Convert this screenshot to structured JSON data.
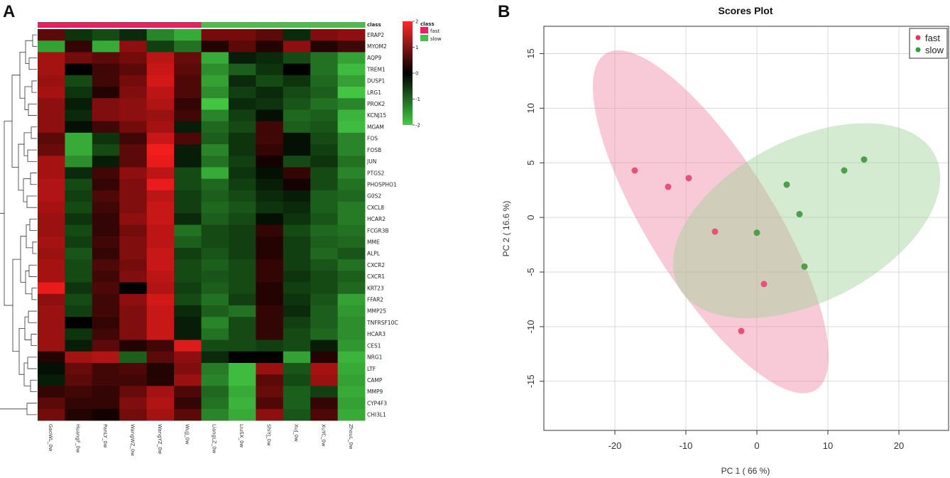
{
  "panels": {
    "a_label": "A",
    "b_label": "B"
  },
  "colors": {
    "fast": "#e8335e",
    "slow": "#2e9e3e",
    "fast_bar": "#e0245e",
    "slow_bar": "#4dbb4d",
    "fast_ellipse": "#f08aa8",
    "slow_ellipse": "#9fd19a",
    "scatter_fast": "#e8527a",
    "scatter_slow": "#4e9e4e"
  },
  "chart_data": [
    {
      "type": "heatmap",
      "class_label": "class",
      "legend": {
        "title": "class",
        "entries": [
          "fast",
          "slow"
        ],
        "scale_ticks": [
          "2",
          "1",
          "0",
          "-1",
          "-2"
        ],
        "scale_range": [
          -2,
          2
        ]
      },
      "samples": [
        "GaoWL_0w",
        "HuangF_0w",
        "PanLY_0w",
        "WangWZ_0w",
        "WangYZ_0w",
        "WuJJ_0w",
        "LiangLZ_0w",
        "LiuSX_0w",
        "ShiYJ_0w",
        "XuJ_0w",
        "XuYC_0w",
        "ZhouL_0w"
      ],
      "sample_class": [
        "fast",
        "fast",
        "fast",
        "fast",
        "fast",
        "fast",
        "slow",
        "slow",
        "slow",
        "slow",
        "slow",
        "slow"
      ],
      "genes": [
        "ERAP2",
        "MYOM2",
        "AQP9",
        "TREM1",
        "DUSP1",
        "LRG1",
        "PROK2",
        "KCNJ15",
        "MGAM",
        "FOS",
        "FOSB",
        "JUN",
        "PTGS2",
        "PHOSPHO1",
        "G0S2",
        "CXCL8",
        "HCAR2",
        "FCGR3B",
        "MME",
        "ALPL",
        "CXCR2",
        "CXCR1",
        "KRT23",
        "FFAR2",
        "MMP25",
        "TNFRSF10C",
        "HCAR3",
        "CES1",
        "NRG1",
        "LTF",
        "CAMP",
        "MMP9",
        "CYP4F3",
        "CHI3L1"
      ],
      "values": [
        [
          0.6,
          -0.4,
          -0.6,
          -0.3,
          -1.2,
          -1.6,
          0.8,
          0.8,
          0.6,
          -0.3,
          0.9,
          1.0
        ],
        [
          -1.5,
          0.3,
          -1.6,
          1.0,
          -0.5,
          -1.0,
          0.2,
          0.6,
          0.2,
          1.0,
          0.2,
          0.4
        ],
        [
          1.2,
          0.8,
          0.6,
          0.8,
          1.4,
          0.7,
          -1.6,
          -0.2,
          -0.3,
          -0.6,
          -1.0,
          -1.5
        ],
        [
          1.2,
          0.0,
          0.4,
          0.6,
          1.5,
          0.6,
          -1.3,
          -0.8,
          -0.4,
          0.0,
          -1.0,
          -1.8
        ],
        [
          1.1,
          -0.6,
          0.4,
          0.8,
          1.6,
          0.5,
          -1.5,
          -0.3,
          -0.6,
          -0.4,
          -0.9,
          -1.5
        ],
        [
          1.2,
          -0.4,
          0.2,
          0.9,
          1.4,
          0.5,
          -1.3,
          -0.5,
          -0.3,
          -0.6,
          -0.8,
          -1.9
        ],
        [
          1.0,
          -0.2,
          0.9,
          1.0,
          1.3,
          0.3,
          -1.9,
          -0.3,
          -0.4,
          -0.7,
          -1.0,
          -1.2
        ],
        [
          1.0,
          -0.3,
          0.9,
          1.0,
          1.1,
          0.4,
          -1.2,
          -0.5,
          -0.1,
          -0.9,
          -0.8,
          -1.7
        ],
        [
          1.0,
          -0.1,
          0.4,
          0.8,
          1.2,
          -0.2,
          -0.9,
          -0.6,
          0.4,
          -0.8,
          -0.7,
          -1.8
        ],
        [
          0.6,
          -1.6,
          -0.4,
          0.4,
          1.5,
          0.5,
          -0.8,
          -0.4,
          0.4,
          -0.1,
          -0.6,
          -1.2
        ],
        [
          0.7,
          -1.6,
          -0.6,
          0.6,
          1.9,
          -0.2,
          -1.2,
          -0.4,
          0.3,
          -0.1,
          -0.5,
          -1.2
        ],
        [
          1.2,
          -1.3,
          -0.2,
          0.6,
          1.8,
          -0.2,
          -1.0,
          -0.5,
          0.1,
          -0.6,
          -0.4,
          -1.0
        ],
        [
          1.2,
          -0.3,
          0.4,
          1.0,
          1.4,
          -0.6,
          -1.6,
          -0.4,
          -0.1,
          0.3,
          -0.6,
          -1.2
        ],
        [
          1.3,
          -0.6,
          0.3,
          0.9,
          1.8,
          -0.6,
          -0.9,
          -0.5,
          -0.2,
          0.1,
          -0.6,
          -1.0
        ],
        [
          1.3,
          -0.5,
          0.5,
          0.9,
          1.4,
          -0.5,
          -0.8,
          -0.6,
          -0.3,
          -0.2,
          -0.8,
          -0.9
        ],
        [
          1.2,
          -0.6,
          0.4,
          0.9,
          1.5,
          -0.5,
          -0.9,
          -0.7,
          -0.4,
          -0.3,
          -0.8,
          -1.1
        ],
        [
          1.1,
          -0.4,
          0.3,
          1.0,
          1.5,
          -0.3,
          -0.8,
          -0.6,
          -0.1,
          -0.4,
          -0.7,
          -1.1
        ],
        [
          1.1,
          -0.6,
          0.3,
          0.8,
          1.4,
          -1.0,
          -0.6,
          -0.5,
          0.3,
          -0.6,
          -0.9,
          -1.0
        ],
        [
          1.2,
          -0.5,
          0.4,
          0.9,
          1.4,
          -0.8,
          -0.6,
          -0.5,
          0.2,
          -0.5,
          -0.8,
          -0.9
        ],
        [
          1.1,
          -0.7,
          0.3,
          0.9,
          1.5,
          -0.5,
          -0.7,
          -0.5,
          0.2,
          -0.5,
          -0.9,
          -0.7
        ],
        [
          1.2,
          -0.6,
          0.5,
          0.8,
          1.5,
          -0.6,
          -0.8,
          -0.6,
          0.3,
          -0.5,
          -0.7,
          -1.0
        ],
        [
          1.2,
          -0.6,
          0.4,
          0.9,
          1.4,
          -0.6,
          -0.7,
          -0.6,
          0.3,
          -0.4,
          -0.6,
          -0.8
        ],
        [
          1.8,
          -0.4,
          0.5,
          0.0,
          1.3,
          -0.5,
          -0.8,
          -0.6,
          0.2,
          -0.5,
          -0.6,
          -0.9
        ],
        [
          1.0,
          -0.6,
          0.4,
          1.0,
          1.6,
          -0.6,
          -1.0,
          -0.5,
          0.2,
          -0.4,
          -0.7,
          -1.5
        ],
        [
          1.1,
          -0.5,
          0.4,
          0.9,
          1.5,
          -0.3,
          -0.8,
          -1.0,
          0.3,
          -0.3,
          -0.8,
          -1.4
        ],
        [
          1.1,
          0.0,
          0.3,
          0.9,
          1.5,
          -0.2,
          -1.2,
          -0.6,
          0.3,
          -0.5,
          -0.8,
          -1.3
        ],
        [
          1.1,
          -0.4,
          0.4,
          0.9,
          1.5,
          -0.2,
          -1.0,
          -0.6,
          0.3,
          -0.6,
          -0.9,
          -1.3
        ],
        [
          1.1,
          -0.2,
          0.6,
          0.2,
          0.4,
          1.7,
          -0.6,
          -0.6,
          -0.5,
          -0.6,
          -0.2,
          -1.4
        ],
        [
          0.2,
          1.2,
          1.3,
          -0.8,
          0.6,
          1.0,
          -0.3,
          0.0,
          0.0,
          -1.5,
          0.2,
          -1.7
        ],
        [
          -0.1,
          0.7,
          0.4,
          0.5,
          0.2,
          0.9,
          -1.1,
          -1.8,
          1.1,
          -0.7,
          1.2,
          -1.6
        ],
        [
          -0.2,
          0.6,
          0.4,
          0.4,
          0.2,
          1.1,
          -1.2,
          -1.8,
          0.6,
          -0.6,
          1.1,
          -1.5
        ],
        [
          0.3,
          0.4,
          0.3,
          0.7,
          1.2,
          0.5,
          -0.9,
          -1.6,
          0.7,
          -0.8,
          -0.5,
          -1.6
        ],
        [
          0.6,
          0.3,
          0.3,
          0.9,
          1.3,
          0.3,
          -1.0,
          -1.7,
          0.5,
          -0.8,
          0.3,
          -1.5
        ],
        [
          0.8,
          0.2,
          0.1,
          0.8,
          1.2,
          0.6,
          -1.2,
          -1.6,
          1.0,
          -0.7,
          0.5,
          -1.6
        ]
      ]
    },
    {
      "type": "scatter",
      "title": "Scores Plot",
      "xlabel": "PC 1 ( 66 %)",
      "ylabel": "PC 2 ( 16.6 %)",
      "xlim": [
        -30,
        27
      ],
      "ylim": [
        -19.5,
        17.5
      ],
      "xticks": [
        "-20",
        "-10",
        "0",
        "10",
        "20"
      ],
      "xtick_values": [
        -20,
        -10,
        0,
        10,
        20
      ],
      "yticks": [
        "15",
        "10",
        "5",
        "0",
        "-5",
        "-10",
        "-15"
      ],
      "ytick_values": [
        15,
        10,
        5,
        0,
        -5,
        -10,
        -15
      ],
      "legend_position": "top-right",
      "series": [
        {
          "name": "fast",
          "points": [
            [
              -17.2,
              4.3
            ],
            [
              -12.5,
              2.8
            ],
            [
              -9.6,
              3.6
            ],
            [
              -5.9,
              -1.3
            ],
            [
              -2.2,
              -10.4
            ],
            [
              1.0,
              -6.1
            ]
          ],
          "ellipse": {
            "cx": -6.5,
            "cy": -0.4,
            "rx": 22.0,
            "ry": 7.0,
            "angle": 58
          }
        },
        {
          "name": "slow",
          "points": [
            [
              0.0,
              -1.4
            ],
            [
              4.2,
              3.0
            ],
            [
              6.0,
              0.3
            ],
            [
              6.7,
              -4.5
            ],
            [
              12.3,
              4.3
            ],
            [
              15.1,
              5.3
            ]
          ],
          "ellipse": {
            "cx": 7.0,
            "cy": -0.3,
            "rx": 16.0,
            "ry": 9.0,
            "angle": -27
          }
        }
      ]
    }
  ]
}
